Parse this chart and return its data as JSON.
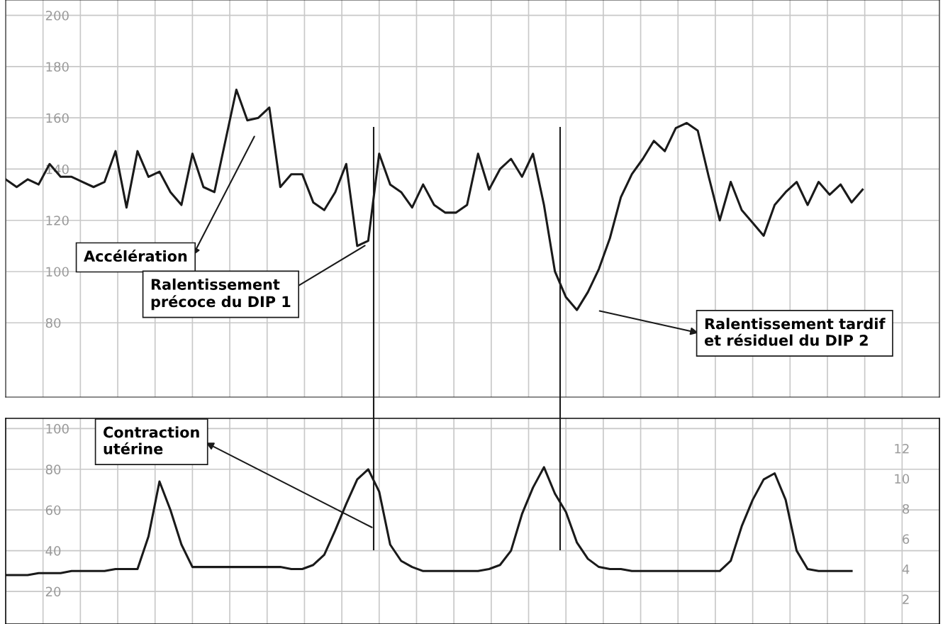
{
  "chart_data": [
    {
      "type": "line",
      "categories": [
        null,
        null,
        null,
        null,
        null,
        null,
        null,
        null,
        null,
        null,
        null,
        null,
        null,
        null,
        null,
        null,
        null,
        null,
        null,
        null,
        null,
        null,
        null,
        null,
        null,
        null,
        null,
        null,
        null,
        null,
        null,
        null,
        null,
        null,
        null,
        null,
        null,
        null,
        null,
        null,
        null,
        null,
        null,
        null,
        null,
        null,
        null,
        null,
        null,
        null,
        null,
        null,
        null,
        null,
        null,
        null,
        null,
        null,
        null,
        null,
        null,
        null,
        null,
        null,
        null,
        null,
        null,
        null,
        null,
        null,
        null,
        null,
        null,
        null,
        null,
        null,
        null,
        null,
        null
      ],
      "series": [
        {
          "color": "#1a1a1a",
          "values": [
            136,
            133,
            136,
            134,
            142,
            137,
            137,
            135,
            133,
            135,
            147,
            125,
            147,
            137,
            139,
            131,
            126,
            146,
            133,
            131,
            151,
            171,
            159,
            160,
            164,
            133,
            138,
            138,
            127,
            124,
            131,
            142,
            110,
            112,
            146,
            134,
            131,
            125,
            134,
            126,
            123,
            123,
            126,
            146,
            132,
            140,
            144,
            137,
            146,
            126,
            100,
            90,
            85,
            92,
            101,
            113,
            129,
            138,
            144,
            151,
            147,
            156,
            158,
            155,
            137,
            120,
            135,
            124,
            119,
            114,
            126,
            131,
            135,
            126,
            135,
            130,
            134,
            127,
            132
          ]
        }
      ],
      "ylim": [
        51,
        206
      ],
      "yticks": [
        80,
        100,
        120,
        140,
        160,
        180,
        200
      ],
      "tick_labels": "y",
      "grid": true,
      "legend": false,
      "marker": "none",
      "line_style": "solid",
      "annotations": [
        "Accélération",
        "Ralentissement précoce du DIP 1",
        "Ralentissement tardif et résiduel du DIP 2"
      ]
    },
    {
      "type": "line",
      "categories": [
        null,
        null,
        null,
        null,
        null,
        null,
        null,
        null,
        null,
        null,
        null,
        null,
        null,
        null,
        null,
        null,
        null,
        null,
        null,
        null,
        null,
        null,
        null,
        null,
        null,
        null,
        null,
        null,
        null,
        null,
        null,
        null,
        null,
        null,
        null,
        null,
        null,
        null,
        null,
        null,
        null,
        null,
        null,
        null,
        null,
        null,
        null,
        null,
        null,
        null,
        null,
        null,
        null,
        null,
        null,
        null,
        null,
        null,
        null,
        null,
        null,
        null,
        null,
        null,
        null,
        null,
        null,
        null,
        null,
        null,
        null,
        null,
        null,
        null,
        null,
        null,
        null,
        null,
        null
      ],
      "series": [
        {
          "color": "#1a1a1a",
          "values": [
            28,
            28,
            28,
            29,
            29,
            29,
            30,
            30,
            30,
            30,
            31,
            31,
            31,
            47,
            74,
            60,
            43,
            32,
            32,
            32,
            32,
            32,
            32,
            32,
            32,
            32,
            31,
            31,
            33,
            38,
            50,
            63,
            75,
            80,
            69,
            43,
            35,
            32,
            30,
            30,
            30,
            30,
            30,
            30,
            31,
            33,
            40,
            58,
            71,
            81,
            68,
            59,
            44,
            36,
            32,
            31,
            31,
            30,
            30,
            30,
            30,
            30,
            30,
            30,
            30,
            30,
            35,
            52,
            65,
            75,
            78,
            65,
            40,
            31,
            30,
            30,
            30,
            30,
            null
          ]
        }
      ],
      "ylim": [
        4,
        105
      ],
      "yticks": [
        20,
        40,
        60,
        80,
        100
      ],
      "y2lim": [
        0.35,
        14
      ],
      "y2ticks": [
        2,
        4,
        6,
        8,
        10,
        12
      ],
      "tick_labels": "y",
      "grid": true,
      "legend": false,
      "marker": "none",
      "line_style": "solid",
      "annotations": [
        "Contraction utérine"
      ]
    }
  ]
}
